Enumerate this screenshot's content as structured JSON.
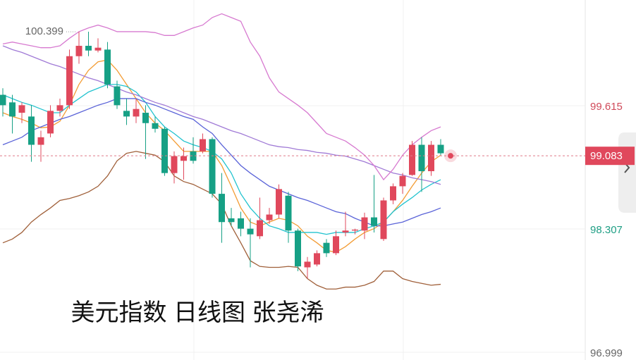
{
  "chart_data": {
    "type": "candlestick",
    "ylim": [
      96.917,
      100.736
    ],
    "yticks": [
      99.615,
      98.307,
      96.999
    ],
    "grid": true,
    "up_color": "#e0485c",
    "down_color": "#16a085",
    "high_value": 100.399,
    "last_value": 99.083,
    "annotation": "美元指数 日线图 张尧浠",
    "open": [
      99.73,
      99.65,
      99.54,
      99.5,
      99.2,
      99.32,
      99.56,
      99.62,
      100.14,
      100.25,
      100.2,
      100.21,
      99.82,
      99.56,
      99.5,
      99.54,
      99.43,
      99.37,
      98.9,
      99.03,
      99.13,
      99.13,
      99.26,
      98.68,
      98.42,
      98.42,
      98.31,
      98.23,
      98.4,
      98.46,
      98.66,
      98.29,
      97.9,
      97.93,
      98.16,
      98.05,
      98.27,
      98.29,
      98.29,
      98.43,
      98.2,
      98.61,
      98.76,
      98.88,
      99.2,
      98.92,
      99.2
    ],
    "high": [
      99.8,
      99.73,
      99.65,
      99.62,
      99.35,
      99.62,
      99.69,
      100.21,
      100.4,
      100.4,
      100.33,
      100.29,
      99.88,
      99.69,
      99.69,
      99.62,
      99.5,
      99.39,
      99.13,
      99.17,
      99.28,
      99.32,
      99.28,
      98.9,
      98.53,
      98.49,
      98.42,
      98.64,
      98.53,
      98.78,
      98.7,
      98.31,
      98.01,
      98.08,
      98.2,
      98.29,
      98.49,
      98.31,
      98.48,
      98.88,
      98.64,
      98.79,
      98.9,
      99.24,
      99.28,
      99.24,
      99.26
    ],
    "low": [
      99.5,
      99.32,
      99.43,
      99.02,
      99.02,
      99.28,
      99.5,
      99.58,
      100.06,
      100.14,
      100.18,
      99.8,
      99.58,
      99.41,
      99.43,
      99.05,
      99.33,
      98.87,
      98.79,
      98.83,
      99.0,
      99.11,
      98.64,
      98.16,
      98.34,
      98.23,
      97.9,
      98.2,
      98.36,
      98.42,
      98.16,
      97.86,
      97.78,
      97.91,
      98.01,
      98.03,
      98.23,
      98.25,
      98.2,
      98.27,
      98.18,
      98.57,
      98.68,
      98.87,
      98.7,
      98.87,
      99.09
    ],
    "close": [
      99.62,
      99.5,
      99.62,
      99.2,
      99.28,
      99.56,
      99.62,
      100.14,
      100.25,
      100.2,
      100.23,
      99.84,
      99.62,
      99.5,
      99.58,
      99.43,
      99.37,
      98.9,
      99.08,
      99.08,
      99.03,
      99.26,
      98.68,
      98.38,
      98.38,
      98.31,
      98.25,
      98.4,
      98.46,
      98.73,
      98.29,
      97.91,
      97.96,
      98.05,
      98.05,
      98.23,
      98.29,
      98.3,
      98.43,
      98.34,
      98.61,
      98.76,
      98.87,
      99.2,
      98.92,
      99.2,
      99.11
    ],
    "lines": [
      {
        "color": "#f39c34",
        "values": [
          99.54,
          99.5,
          99.47,
          99.43,
          99.38,
          99.39,
          99.45,
          99.62,
          99.84,
          99.99,
          100.08,
          100.1,
          99.99,
          99.84,
          99.69,
          99.54,
          99.43,
          99.35,
          99.24,
          99.13,
          99.13,
          99.13,
          99.13,
          98.98,
          98.76,
          98.53,
          98.38,
          98.34,
          98.38,
          98.42,
          98.4,
          98.34,
          98.23,
          98.16,
          98.08,
          98.06,
          98.12,
          98.2,
          98.27,
          98.31,
          98.38,
          98.49,
          98.61,
          98.76,
          98.9,
          99.02,
          99.09
        ]
      },
      {
        "color": "#22c3cf",
        "values": [
          99.73,
          99.69,
          99.65,
          99.62,
          99.58,
          99.54,
          99.54,
          99.62,
          99.69,
          99.76,
          99.8,
          99.84,
          99.84,
          99.82,
          99.76,
          99.65,
          99.5,
          99.39,
          99.32,
          99.24,
          99.2,
          99.17,
          99.13,
          99.05,
          98.9,
          98.68,
          98.53,
          98.42,
          98.34,
          98.31,
          98.27,
          98.27,
          98.27,
          98.27,
          98.25,
          98.27,
          98.27,
          98.27,
          98.31,
          98.34,
          98.38,
          98.49,
          98.57,
          98.64,
          98.72,
          98.78,
          98.83
        ]
      },
      {
        "color": "#5a63d8",
        "values": [
          99.2,
          99.24,
          99.28,
          99.35,
          99.39,
          99.43,
          99.47,
          99.5,
          99.54,
          99.58,
          99.62,
          99.65,
          99.69,
          99.69,
          99.69,
          99.65,
          99.62,
          99.58,
          99.54,
          99.5,
          99.47,
          99.39,
          99.32,
          99.2,
          99.09,
          98.98,
          98.9,
          98.83,
          98.76,
          98.72,
          98.68,
          98.64,
          98.61,
          98.57,
          98.53,
          98.49,
          98.47,
          98.42,
          98.38,
          98.34,
          98.34,
          98.36,
          98.38,
          98.42,
          98.46,
          98.49,
          98.53
        ]
      },
      {
        "color": "#a07ad6",
        "values": [
          100.25,
          100.21,
          100.18,
          100.14,
          100.1,
          100.06,
          100.03,
          99.99,
          99.95,
          99.91,
          99.88,
          99.84,
          99.8,
          99.76,
          99.73,
          99.69,
          99.65,
          99.62,
          99.58,
          99.54,
          99.5,
          99.47,
          99.43,
          99.39,
          99.35,
          99.32,
          99.28,
          99.24,
          99.2,
          99.18,
          99.17,
          99.15,
          99.14,
          99.12,
          99.11,
          99.09,
          99.08,
          99.05,
          99.02,
          98.98,
          98.94,
          98.9,
          98.88,
          98.85,
          98.83,
          98.81,
          98.78
        ]
      },
      {
        "color": "#d77ad0",
        "values": [
          100.27,
          100.29,
          100.27,
          100.25,
          100.23,
          100.23,
          100.25,
          100.33,
          100.4,
          100.44,
          100.47,
          100.44,
          100.4,
          100.4,
          100.4,
          100.4,
          100.39,
          100.36,
          100.36,
          100.4,
          100.44,
          100.47,
          100.55,
          100.59,
          100.55,
          100.51,
          100.29,
          100.14,
          99.91,
          99.76,
          99.69,
          99.62,
          99.54,
          99.43,
          99.32,
          99.28,
          99.24,
          99.17,
          99.09,
          98.98,
          98.83,
          98.94,
          99.09,
          99.2,
          99.28,
          99.35,
          99.39
        ]
      },
      {
        "color": "#a0603a",
        "values": [
          98.16,
          98.2,
          98.27,
          98.38,
          98.46,
          98.53,
          98.61,
          98.63,
          98.66,
          98.7,
          98.76,
          98.87,
          99.03,
          99.11,
          99.13,
          99.11,
          99.09,
          99.02,
          98.87,
          98.81,
          98.78,
          98.73,
          98.68,
          98.57,
          98.34,
          98.16,
          97.97,
          97.91,
          97.9,
          97.9,
          97.91,
          97.9,
          97.78,
          97.71,
          97.67,
          97.67,
          97.69,
          97.69,
          97.71,
          97.75,
          97.86,
          97.86,
          97.78,
          97.75,
          97.73,
          97.71,
          97.72
        ]
      }
    ]
  }
}
